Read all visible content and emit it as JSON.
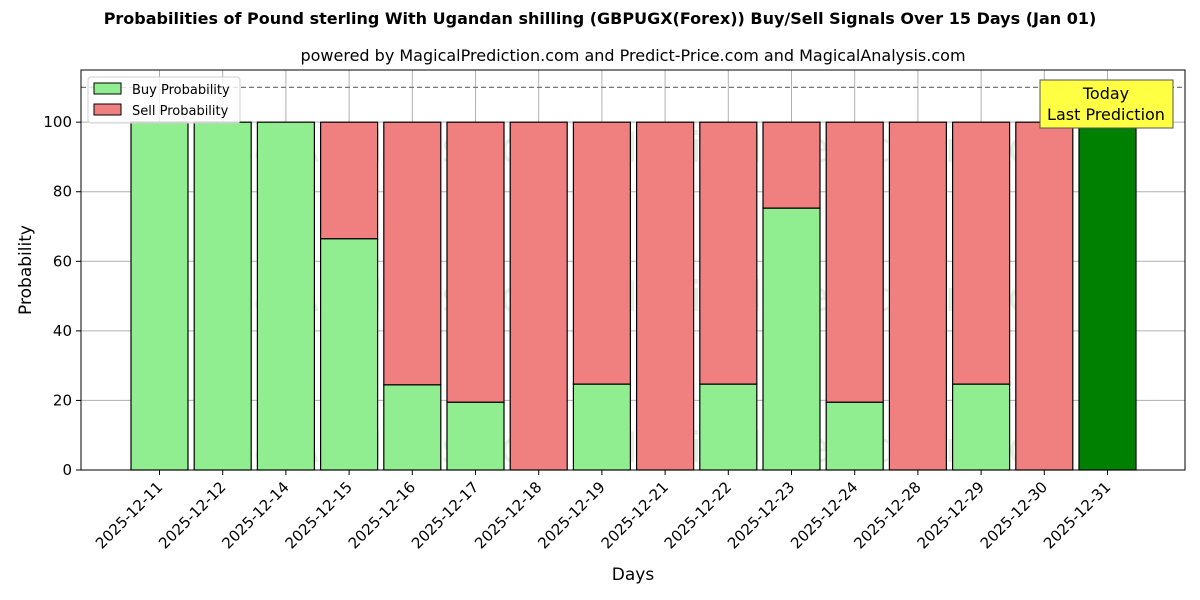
{
  "header": {
    "title": "Probabilities of Pound sterling With Ugandan shilling (GBPUGX(Forex)) Buy/Sell Signals Over 15 Days (Jan 01)",
    "subtitle": "powered by MagicalPrediction.com and Predict-Price.com and MagicalAnalysis.com"
  },
  "colors": {
    "buy": "#90ee90",
    "sell": "#f08080",
    "today": "#008000",
    "annotation_bg": "#ffff44",
    "grid": "#b0b0b0"
  },
  "chart_data": {
    "type": "bar",
    "stacked": true,
    "title": "Probabilities of Pound sterling With Ugandan shilling (GBPUGX(Forex)) Buy/Sell Signals Over 15 Days (Jan 01)",
    "subtitle": "powered by MagicalPrediction.com and Predict-Price.com and MagicalAnalysis.com",
    "xlabel": "Days",
    "ylabel": "Probability",
    "ylim": [
      0,
      115
    ],
    "yticks": [
      0,
      20,
      40,
      60,
      80,
      100
    ],
    "grid": true,
    "reference_line": 110,
    "legend_position": "upper left",
    "categories": [
      "2025-12-11",
      "2025-12-12",
      "2025-12-14",
      "2025-12-15",
      "2025-12-16",
      "2025-12-17",
      "2025-12-18",
      "2025-12-19",
      "2025-12-21",
      "2025-12-22",
      "2025-12-23",
      "2025-12-24",
      "2025-12-28",
      "2025-12-29",
      "2025-12-30",
      "2025-12-31"
    ],
    "series": [
      {
        "name": "Buy Probability",
        "values": [
          100,
          100,
          100,
          66.5,
          24.5,
          19.5,
          0,
          24.7,
          0,
          24.7,
          75.3,
          19.5,
          0,
          24.7,
          0,
          100
        ]
      },
      {
        "name": "Sell Probability",
        "values": [
          0,
          0,
          0,
          33.5,
          75.5,
          80.5,
          100,
          75.3,
          100,
          75.3,
          24.7,
          80.5,
          100,
          75.3,
          100,
          0
        ]
      }
    ],
    "highlight": {
      "category": "2025-12-31",
      "label": "Today\nLast Prediction"
    },
    "watermarks": [
      "MagicalAnalysis.com",
      "MagicalPrediction.com"
    ]
  },
  "legend": {
    "buy_label": "Buy Probability",
    "sell_label": "Sell Probability"
  },
  "annotation": {
    "line1": "Today",
    "line2": "Last Prediction"
  }
}
